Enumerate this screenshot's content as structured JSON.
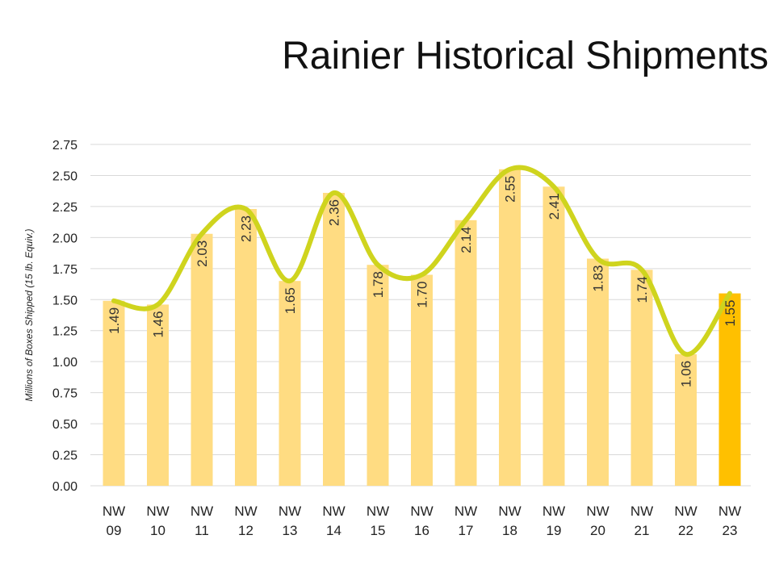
{
  "slide": {
    "title": "Rainier Historical Shipments"
  },
  "chart_data": {
    "type": "bar",
    "title": "Rainier Historical Shipments",
    "xlabel": "",
    "ylabel": "Millions of Boxes Shipped (15 lb. Equiv.)",
    "ylim": [
      0,
      2.75
    ],
    "yticks": [
      "0.00",
      "0.25",
      "0.50",
      "0.75",
      "1.00",
      "1.25",
      "1.50",
      "1.75",
      "2.00",
      "2.25",
      "2.50",
      "2.75"
    ],
    "categories": [
      [
        "NW",
        "09"
      ],
      [
        "NW",
        "10"
      ],
      [
        "NW",
        "11"
      ],
      [
        "NW",
        "12"
      ],
      [
        "NW",
        "13"
      ],
      [
        "NW",
        "14"
      ],
      [
        "NW",
        "15"
      ],
      [
        "NW",
        "16"
      ],
      [
        "NW",
        "17"
      ],
      [
        "NW",
        "18"
      ],
      [
        "NW",
        "19"
      ],
      [
        "NW",
        "20"
      ],
      [
        "NW",
        "21"
      ],
      [
        "NW",
        "22"
      ],
      [
        "NW",
        "23"
      ]
    ],
    "values": [
      1.49,
      1.46,
      2.03,
      2.23,
      1.65,
      2.36,
      1.78,
      1.7,
      2.14,
      2.55,
      2.41,
      1.83,
      1.74,
      1.06,
      1.55
    ],
    "data_labels": [
      "1.49",
      "1.46",
      "2.03",
      "2.23",
      "1.65",
      "2.36",
      "1.78",
      "1.70",
      "2.14",
      "2.55",
      "2.41",
      "1.83",
      "1.74",
      "1.06",
      "1.55"
    ],
    "trend_line": "smooth",
    "grid": true,
    "legend": "none",
    "colors": {
      "bar": "#FFDC82",
      "bar_highlight": "#FFC000",
      "trend": "#CFD41E",
      "grid": "#D9D9D9"
    },
    "highlight_index": 14
  }
}
